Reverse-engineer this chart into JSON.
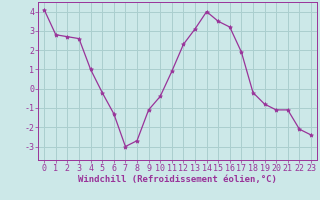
{
  "x": [
    0,
    1,
    2,
    3,
    4,
    5,
    6,
    7,
    8,
    9,
    10,
    11,
    12,
    13,
    14,
    15,
    16,
    17,
    18,
    19,
    20,
    21,
    22,
    23
  ],
  "y": [
    4.1,
    2.8,
    2.7,
    2.6,
    1.0,
    -0.2,
    -1.3,
    -3.0,
    -2.7,
    -1.1,
    -0.4,
    0.9,
    2.3,
    3.1,
    4.0,
    3.5,
    3.2,
    1.9,
    -0.2,
    -0.8,
    -1.1,
    -1.1,
    -2.1,
    -2.4
  ],
  "line_color": "#993399",
  "marker": "*",
  "marker_size": 3,
  "bg_color": "#cce8e8",
  "grid_color": "#aacece",
  "xlabel": "Windchill (Refroidissement éolien,°C)",
  "xlim": [
    -0.5,
    23.5
  ],
  "ylim": [
    -3.7,
    4.5
  ],
  "yticks": [
    -3,
    -2,
    -1,
    0,
    1,
    2,
    3,
    4
  ],
  "xticks": [
    0,
    1,
    2,
    3,
    4,
    5,
    6,
    7,
    8,
    9,
    10,
    11,
    12,
    13,
    14,
    15,
    16,
    17,
    18,
    19,
    20,
    21,
    22,
    23
  ],
  "xlabel_fontsize": 6.5,
  "tick_fontsize": 6.0
}
